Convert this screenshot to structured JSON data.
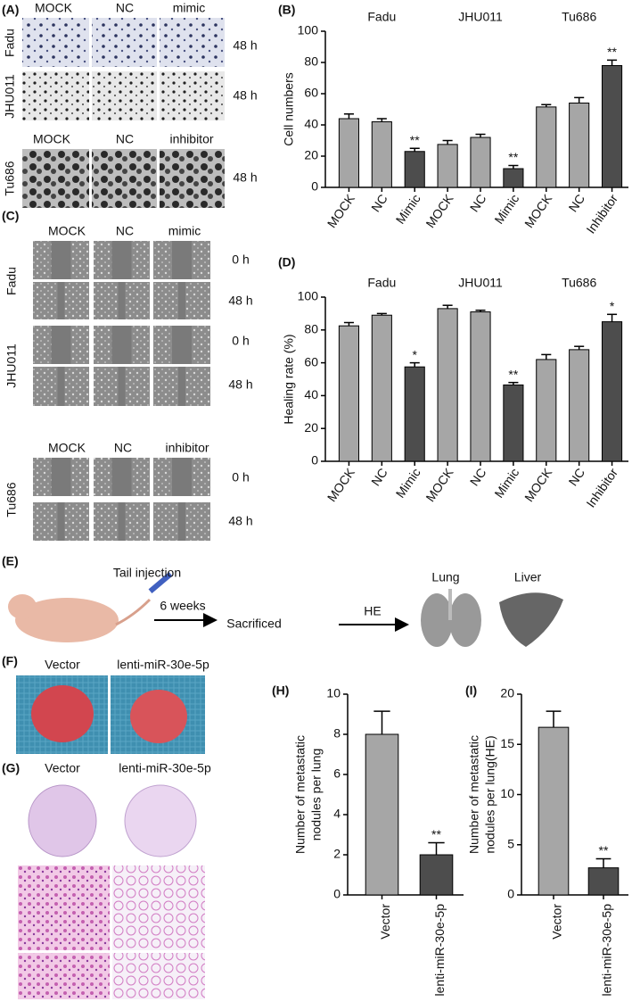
{
  "panel_labels": [
    "(A)",
    "(B)",
    "(C)",
    "(D)",
    "(E)",
    "(F)",
    "(G)",
    "(H)",
    "(I)"
  ],
  "panels": {
    "A": {
      "columns_top": [
        "MOCK",
        "NC",
        "mimic"
      ],
      "columns_bottom": [
        "MOCK",
        "NC",
        "inhibitor"
      ],
      "rows": [
        "Fadu",
        "JHU011",
        "Tu686"
      ],
      "time": "48 h"
    },
    "C": {
      "columns_top": [
        "MOCK",
        "NC",
        "mimic"
      ],
      "columns_bottom": [
        "MOCK",
        "NC",
        "inhibitor"
      ],
      "rows": [
        "Fadu",
        "JHU011",
        "Tu686"
      ],
      "times": [
        "0 h",
        "48 h"
      ]
    },
    "E": {
      "injection": "Tail injection",
      "duration": "6 weeks",
      "step": "Sacrificed",
      "stain": "HE",
      "organs": [
        "Lung",
        "Liver"
      ]
    },
    "F": {
      "groups": [
        "Vector",
        "lenti-miR-30e-5p"
      ]
    },
    "G": {
      "groups": [
        "Vector",
        "lenti-miR-30e-5p"
      ]
    }
  },
  "chart_data": [
    {
      "type": "bar",
      "ylabel": [
        "Cell numbers"
      ],
      "groups": [
        "Fadu",
        "JHU011",
        "Tu686"
      ],
      "categories": [
        "MOCK",
        "NC",
        "Mimic",
        "MOCK",
        "NC",
        "Mimic",
        "MOCK",
        "NC",
        "Inhibitor"
      ],
      "values": [
        44,
        42,
        23,
        27.5,
        32,
        12,
        51.5,
        54,
        78
      ],
      "errors": [
        3,
        2,
        2,
        2.5,
        2,
        2,
        1.5,
        3.5,
        3.5
      ],
      "significance": [
        null,
        null,
        "**",
        null,
        null,
        "**",
        null,
        null,
        "**"
      ],
      "colors": [
        "#a6a6a6",
        "#a6a6a6",
        "#4d4d4d",
        "#a6a6a6",
        "#a6a6a6",
        "#4d4d4d",
        "#a6a6a6",
        "#a6a6a6",
        "#4d4d4d"
      ],
      "ylim": [
        0,
        100
      ],
      "yticks": [
        0,
        20,
        40,
        60,
        80,
        100
      ]
    },
    {
      "type": "bar",
      "ylabel": [
        "Healing rate (%)"
      ],
      "groups": [
        "Fadu",
        "JHU011",
        "Tu686"
      ],
      "categories": [
        "MOCK",
        "NC",
        "Mimic",
        "MOCK",
        "NC",
        "Mimic",
        "MOCK",
        "NC",
        "Inhibitor"
      ],
      "values": [
        82.5,
        89,
        57.5,
        93,
        91,
        46.5,
        62,
        68,
        85
      ],
      "errors": [
        2,
        1,
        2.5,
        2,
        1,
        1.5,
        3,
        2,
        4.5
      ],
      "significance": [
        null,
        null,
        "*",
        null,
        null,
        "**",
        null,
        null,
        "*"
      ],
      "colors": [
        "#a6a6a6",
        "#a6a6a6",
        "#4d4d4d",
        "#a6a6a6",
        "#a6a6a6",
        "#4d4d4d",
        "#a6a6a6",
        "#a6a6a6",
        "#4d4d4d"
      ],
      "ylim": [
        0,
        100
      ],
      "yticks": [
        0,
        20,
        40,
        60,
        80,
        100
      ]
    },
    {
      "type": "bar",
      "ylabel": [
        "Number of metastatic",
        "nodules per lung"
      ],
      "categories": [
        "Vector",
        "lenti-miR-30e-5p"
      ],
      "values": [
        8,
        2
      ],
      "errors": [
        1.15,
        0.6
      ],
      "significance": [
        null,
        "**"
      ],
      "colors": [
        "#a6a6a6",
        "#4d4d4d"
      ],
      "ylim": [
        0,
        10
      ],
      "yticks": [
        0,
        2,
        4,
        6,
        8,
        10
      ]
    },
    {
      "type": "bar",
      "ylabel": [
        "Number of metastatic",
        "nodules per lung(HE)"
      ],
      "categories": [
        "Vector",
        "lenti-miR-30e-5p"
      ],
      "values": [
        16.7,
        2.7
      ],
      "errors": [
        1.6,
        0.9
      ],
      "significance": [
        null,
        "**"
      ],
      "colors": [
        "#a6a6a6",
        "#4d4d4d"
      ],
      "ylim": [
        0,
        20
      ],
      "yticks": [
        0,
        5,
        10,
        15,
        20
      ]
    }
  ]
}
